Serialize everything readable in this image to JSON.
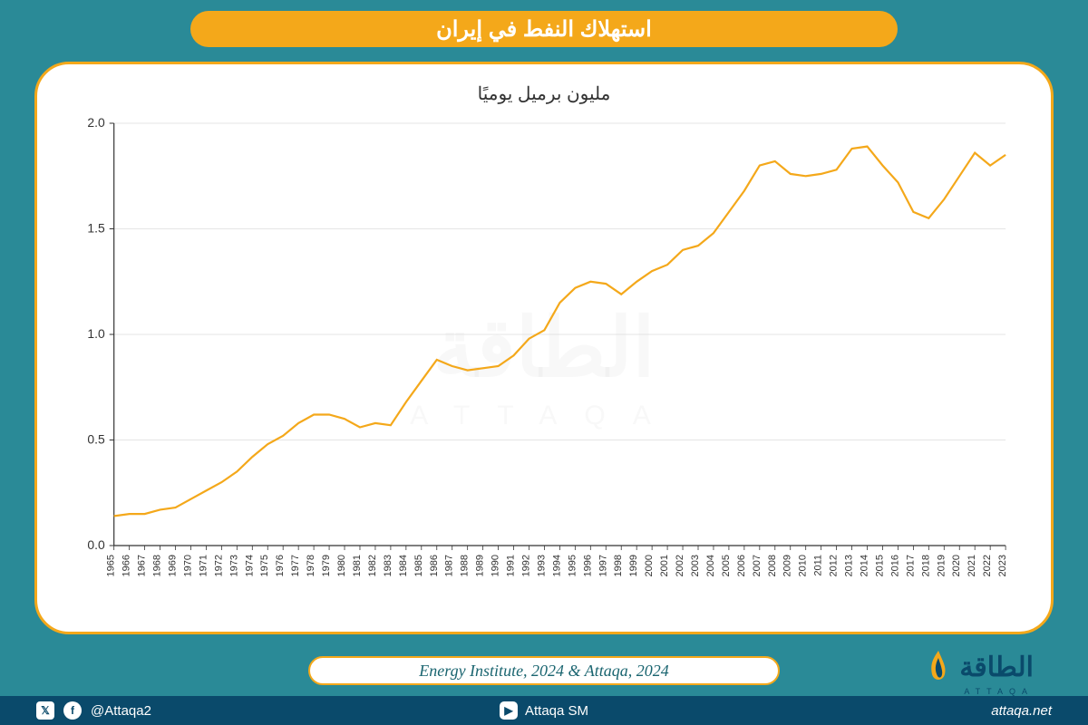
{
  "header": {
    "title": "استهلاك النفط في إيران"
  },
  "chart": {
    "type": "line",
    "subtitle": "مليون برميل يوميًا",
    "line_color": "#f4a81a",
    "line_width": 2.2,
    "axis_color": "#333333",
    "grid_color": "#cccccc",
    "background_color": "#ffffff",
    "container_border_color": "#f4a81a",
    "container_border_radius": 38,
    "years": [
      1965,
      1966,
      1967,
      1968,
      1969,
      1970,
      1971,
      1972,
      1973,
      1974,
      1975,
      1976,
      1977,
      1978,
      1979,
      1980,
      1981,
      1982,
      1983,
      1984,
      1985,
      1986,
      1987,
      1988,
      1989,
      1990,
      1991,
      1992,
      1993,
      1994,
      1995,
      1996,
      1997,
      1998,
      1999,
      2000,
      2001,
      2002,
      2003,
      2004,
      2005,
      2006,
      2007,
      2008,
      2009,
      2010,
      2011,
      2012,
      2013,
      2014,
      2015,
      2016,
      2017,
      2018,
      2019,
      2020,
      2021,
      2022,
      2023
    ],
    "values": [
      0.14,
      0.15,
      0.15,
      0.17,
      0.18,
      0.22,
      0.26,
      0.3,
      0.35,
      0.42,
      0.48,
      0.52,
      0.58,
      0.62,
      0.62,
      0.6,
      0.56,
      0.58,
      0.57,
      0.68,
      0.78,
      0.88,
      0.85,
      0.83,
      0.84,
      0.85,
      0.9,
      0.98,
      1.02,
      1.15,
      1.22,
      1.25,
      1.24,
      1.19,
      1.25,
      1.3,
      1.33,
      1.4,
      1.42,
      1.48,
      1.58,
      1.68,
      1.8,
      1.82,
      1.76,
      1.75,
      1.76,
      1.78,
      1.88,
      1.89,
      1.8,
      1.72,
      1.58,
      1.55,
      1.64,
      1.75,
      1.86,
      1.8,
      1.85
    ],
    "ylim": [
      0.0,
      2.0
    ],
    "yticks": [
      0.0,
      0.5,
      1.0,
      1.5,
      2.0
    ],
    "ytick_labels": [
      "0.0",
      "0.5",
      "1.0",
      "1.5",
      "2.0"
    ],
    "tick_fontsize": 12,
    "subtitle_fontsize": 20,
    "watermark_text": "الطاقة",
    "watermark_sub": "ATTAQA"
  },
  "source": {
    "text": "Energy Institute, 2024 & Attaqa, 2024"
  },
  "logo": {
    "main": "الطاقة",
    "sub": "ATTAQA"
  },
  "footer": {
    "handle": "@Attaqa2",
    "youtube": "Attaqa SM",
    "site": "attaqa.net"
  },
  "colors": {
    "page_bg": "#2a8a97",
    "header_bg": "#f4a81a",
    "header_text": "#ffffff",
    "footer_bg": "#0a4a6b",
    "footer_text": "#ffffff",
    "logo_text": "#0a4a6b"
  }
}
